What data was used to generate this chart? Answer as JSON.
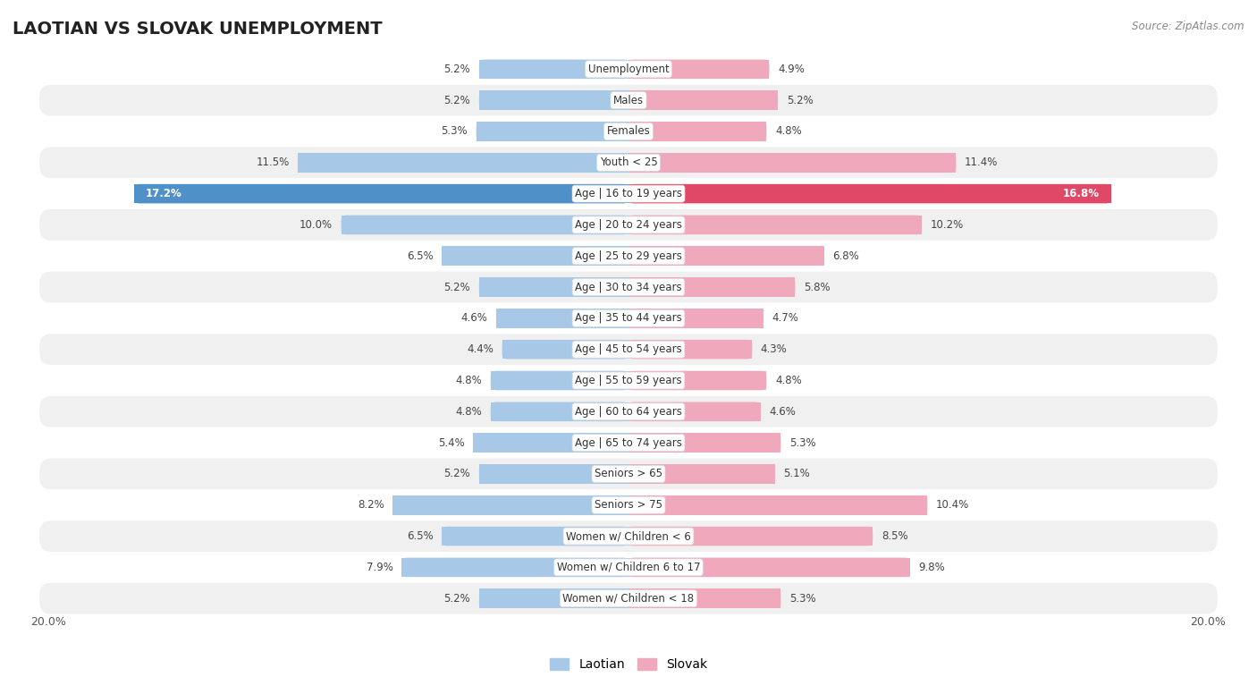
{
  "title": "LAOTIAN VS SLOVAK UNEMPLOYMENT",
  "source": "Source: ZipAtlas.com",
  "categories": [
    "Unemployment",
    "Males",
    "Females",
    "Youth < 25",
    "Age | 16 to 19 years",
    "Age | 20 to 24 years",
    "Age | 25 to 29 years",
    "Age | 30 to 34 years",
    "Age | 35 to 44 years",
    "Age | 45 to 54 years",
    "Age | 55 to 59 years",
    "Age | 60 to 64 years",
    "Age | 65 to 74 years",
    "Seniors > 65",
    "Seniors > 75",
    "Women w/ Children < 6",
    "Women w/ Children 6 to 17",
    "Women w/ Children < 18"
  ],
  "laotian": [
    5.2,
    5.2,
    5.3,
    11.5,
    17.2,
    10.0,
    6.5,
    5.2,
    4.6,
    4.4,
    4.8,
    4.8,
    5.4,
    5.2,
    8.2,
    6.5,
    7.9,
    5.2
  ],
  "slovak": [
    4.9,
    5.2,
    4.8,
    11.4,
    16.8,
    10.2,
    6.8,
    5.8,
    4.7,
    4.3,
    4.8,
    4.6,
    5.3,
    5.1,
    10.4,
    8.5,
    9.8,
    5.3
  ],
  "laotian_color": "#a8c8e8",
  "slovak_color": "#f0a8bc",
  "laotian_highlight_color": "#5090c8",
  "slovak_highlight_color": "#e04868",
  "highlight_index": 4,
  "bg_white": "#ffffff",
  "bg_light_gray": "#f0f0f0",
  "xlim": 20.0,
  "legend_laotian": "Laotian",
  "legend_slovak": "Slovak",
  "title_fontsize": 14,
  "bar_height": 0.62
}
